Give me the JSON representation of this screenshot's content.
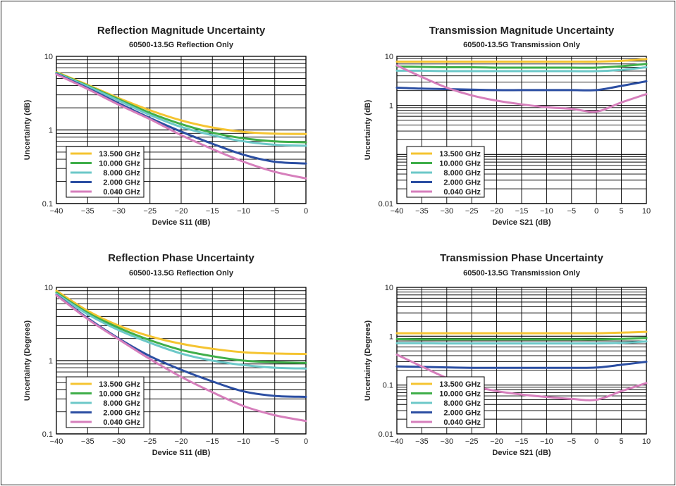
{
  "colors": {
    "13.500 GHz": "#f5c431",
    "10.000 GHz": "#3fae49",
    "8.000 GHz": "#6cc8c8",
    "2.000 GHz": "#2b4ea2",
    "0.040 GHz": "#d67fbc"
  },
  "chart_data": [
    {
      "type": "line",
      "title": "Reflection Magnitude Uncertainty",
      "subtitle": "60500-13.5G Reflection Only",
      "xlabel": "Device S11 (dB)",
      "ylabel": "Uncertainty (dB)",
      "xlim": [
        -40,
        0
      ],
      "ylim": [
        0.1,
        10
      ],
      "yscale": "log",
      "x_ticks": [
        "-40",
        "-35",
        "-30",
        "-25",
        "-20",
        "-15",
        "-10",
        "-5",
        "0"
      ],
      "y_ticks": [
        "0.1",
        "1",
        "10"
      ],
      "grid": true,
      "legend": "bottom-left",
      "x": [
        -40,
        -35,
        -30,
        -25,
        -20,
        -15,
        -10,
        -5,
        0
      ],
      "series": [
        {
          "name": "13.500 GHz",
          "values": [
            6.1,
            4.1,
            2.7,
            1.85,
            1.35,
            1.08,
            0.94,
            0.89,
            0.88
          ]
        },
        {
          "name": "10.000 GHz",
          "values": [
            6.0,
            4.0,
            2.6,
            1.7,
            1.2,
            0.92,
            0.77,
            0.7,
            0.68
          ]
        },
        {
          "name": "8.000 GHz",
          "values": [
            5.9,
            3.9,
            2.5,
            1.6,
            1.1,
            0.85,
            0.7,
            0.63,
            0.61
          ]
        },
        {
          "name": "2.000 GHz",
          "values": [
            5.8,
            3.7,
            2.3,
            1.45,
            0.95,
            0.65,
            0.46,
            0.37,
            0.35
          ]
        },
        {
          "name": "0.040 GHz",
          "values": [
            5.7,
            3.6,
            2.2,
            1.4,
            0.85,
            0.55,
            0.37,
            0.27,
            0.22
          ]
        }
      ]
    },
    {
      "type": "line",
      "title": "Transmission Magnitude Uncertainty",
      "subtitle": "60500-13.5G Transmission Only",
      "xlabel": "Device S21 (dB)",
      "ylabel": "Uncertainty (dB)",
      "xlim": [
        -40,
        10
      ],
      "ylim": [
        0.01,
        10
      ],
      "yscale": "log",
      "x_ticks": [
        "-40",
        "-35",
        "-30",
        "-25",
        "-20",
        "-15",
        "-10",
        "-5",
        "0",
        "5",
        "10"
      ],
      "y_ticks": [
        "0.01",
        "1",
        "10"
      ],
      "grid": true,
      "legend": "bottom-left",
      "x": [
        -40,
        -35,
        -30,
        -25,
        -20,
        -15,
        -10,
        -5,
        0,
        5,
        10
      ],
      "series": [
        {
          "name": "13.500 GHz",
          "values": [
            7.8,
            7.8,
            7.8,
            7.8,
            7.8,
            7.8,
            7.8,
            7.8,
            7.8,
            8.1,
            8.8
          ]
        },
        {
          "name": "10.000 GHz",
          "values": [
            6.2,
            6.1,
            6.0,
            6.0,
            5.9,
            5.9,
            5.9,
            5.9,
            5.9,
            6.3,
            7.0
          ]
        },
        {
          "name": "8.000 GHz",
          "values": [
            5.1,
            5.1,
            5.0,
            5.0,
            5.0,
            5.0,
            5.0,
            5.0,
            5.0,
            5.3,
            6.0
          ]
        },
        {
          "name": "2.000 GHz",
          "values": [
            2.3,
            2.2,
            2.15,
            2.1,
            2.05,
            2.05,
            2.05,
            2.05,
            2.05,
            2.5,
            3.1
          ]
        },
        {
          "name": "0.040 GHz",
          "values": [
            6.5,
            3.8,
            2.3,
            1.6,
            1.25,
            1.05,
            0.92,
            0.85,
            0.75,
            1.15,
            1.7
          ]
        }
      ]
    },
    {
      "type": "line",
      "title": "Reflection Phase Uncertainty",
      "subtitle": "60500-13.5G  Reflection Only",
      "xlabel": "Device S11 (dB)",
      "ylabel": "Uncertainty (Degrees)",
      "xlim": [
        -40,
        0
      ],
      "ylim": [
        0.1,
        10
      ],
      "yscale": "log",
      "x_ticks": [
        "-40",
        "-35",
        "-30",
        "-25",
        "-20",
        "-15",
        "-10",
        "-5",
        "0"
      ],
      "y_ticks": [
        "0.1",
        "1",
        "10"
      ],
      "grid": true,
      "legend": "bottom-left",
      "x": [
        -40,
        -35,
        -30,
        -25,
        -20,
        -15,
        -10,
        -5,
        0
      ],
      "series": [
        {
          "name": "13.500 GHz",
          "values": [
            9.0,
            4.8,
            3.0,
            2.15,
            1.7,
            1.45,
            1.3,
            1.25,
            1.23
          ]
        },
        {
          "name": "10.000 GHz",
          "values": [
            8.5,
            4.5,
            2.8,
            1.9,
            1.4,
            1.15,
            1.0,
            0.95,
            0.93
          ]
        },
        {
          "name": "8.000 GHz",
          "values": [
            8.2,
            4.3,
            2.6,
            1.75,
            1.25,
            1.0,
            0.87,
            0.8,
            0.78
          ]
        },
        {
          "name": "2.000 GHz",
          "values": [
            7.9,
            3.8,
            2.0,
            1.15,
            0.75,
            0.52,
            0.38,
            0.33,
            0.32
          ]
        },
        {
          "name": "0.040 GHz",
          "values": [
            7.8,
            3.7,
            1.95,
            1.05,
            0.6,
            0.37,
            0.24,
            0.18,
            0.15
          ]
        }
      ]
    },
    {
      "type": "line",
      "title": "Transmission Phase Uncertainty",
      "subtitle": "60500-13.5G Transmission Only",
      "xlabel": "Device S21 (dB)",
      "ylabel": "Uncertainty (Degrees)",
      "xlim": [
        -40,
        10
      ],
      "ylim": [
        0.01,
        10
      ],
      "yscale": "log",
      "x_ticks": [
        "-40",
        "-35",
        "-30",
        "-25",
        "-20",
        "-15",
        "-10",
        "-5",
        "0",
        "5",
        "10"
      ],
      "y_ticks": [
        "0.01",
        "0.1",
        "1",
        "10"
      ],
      "grid": true,
      "legend": "bottom-left",
      "x": [
        -40,
        -35,
        -30,
        -25,
        -20,
        -15,
        -10,
        -5,
        0,
        5,
        10
      ],
      "series": [
        {
          "name": "13.500 GHz",
          "values": [
            1.15,
            1.15,
            1.15,
            1.15,
            1.15,
            1.15,
            1.15,
            1.15,
            1.15,
            1.18,
            1.23
          ]
        },
        {
          "name": "10.000 GHz",
          "values": [
            0.87,
            0.86,
            0.86,
            0.86,
            0.86,
            0.86,
            0.86,
            0.86,
            0.86,
            0.88,
            0.92
          ]
        },
        {
          "name": "8.000 GHz",
          "values": [
            0.72,
            0.72,
            0.71,
            0.71,
            0.71,
            0.71,
            0.71,
            0.71,
            0.71,
            0.73,
            0.78
          ]
        },
        {
          "name": "2.000 GHz",
          "values": [
            0.24,
            0.235,
            0.23,
            0.225,
            0.225,
            0.225,
            0.225,
            0.225,
            0.228,
            0.26,
            0.3
          ]
        },
        {
          "name": "0.040 GHz",
          "values": [
            0.42,
            0.24,
            0.14,
            0.097,
            0.075,
            0.064,
            0.057,
            0.052,
            0.05,
            0.075,
            0.11
          ]
        }
      ]
    }
  ]
}
